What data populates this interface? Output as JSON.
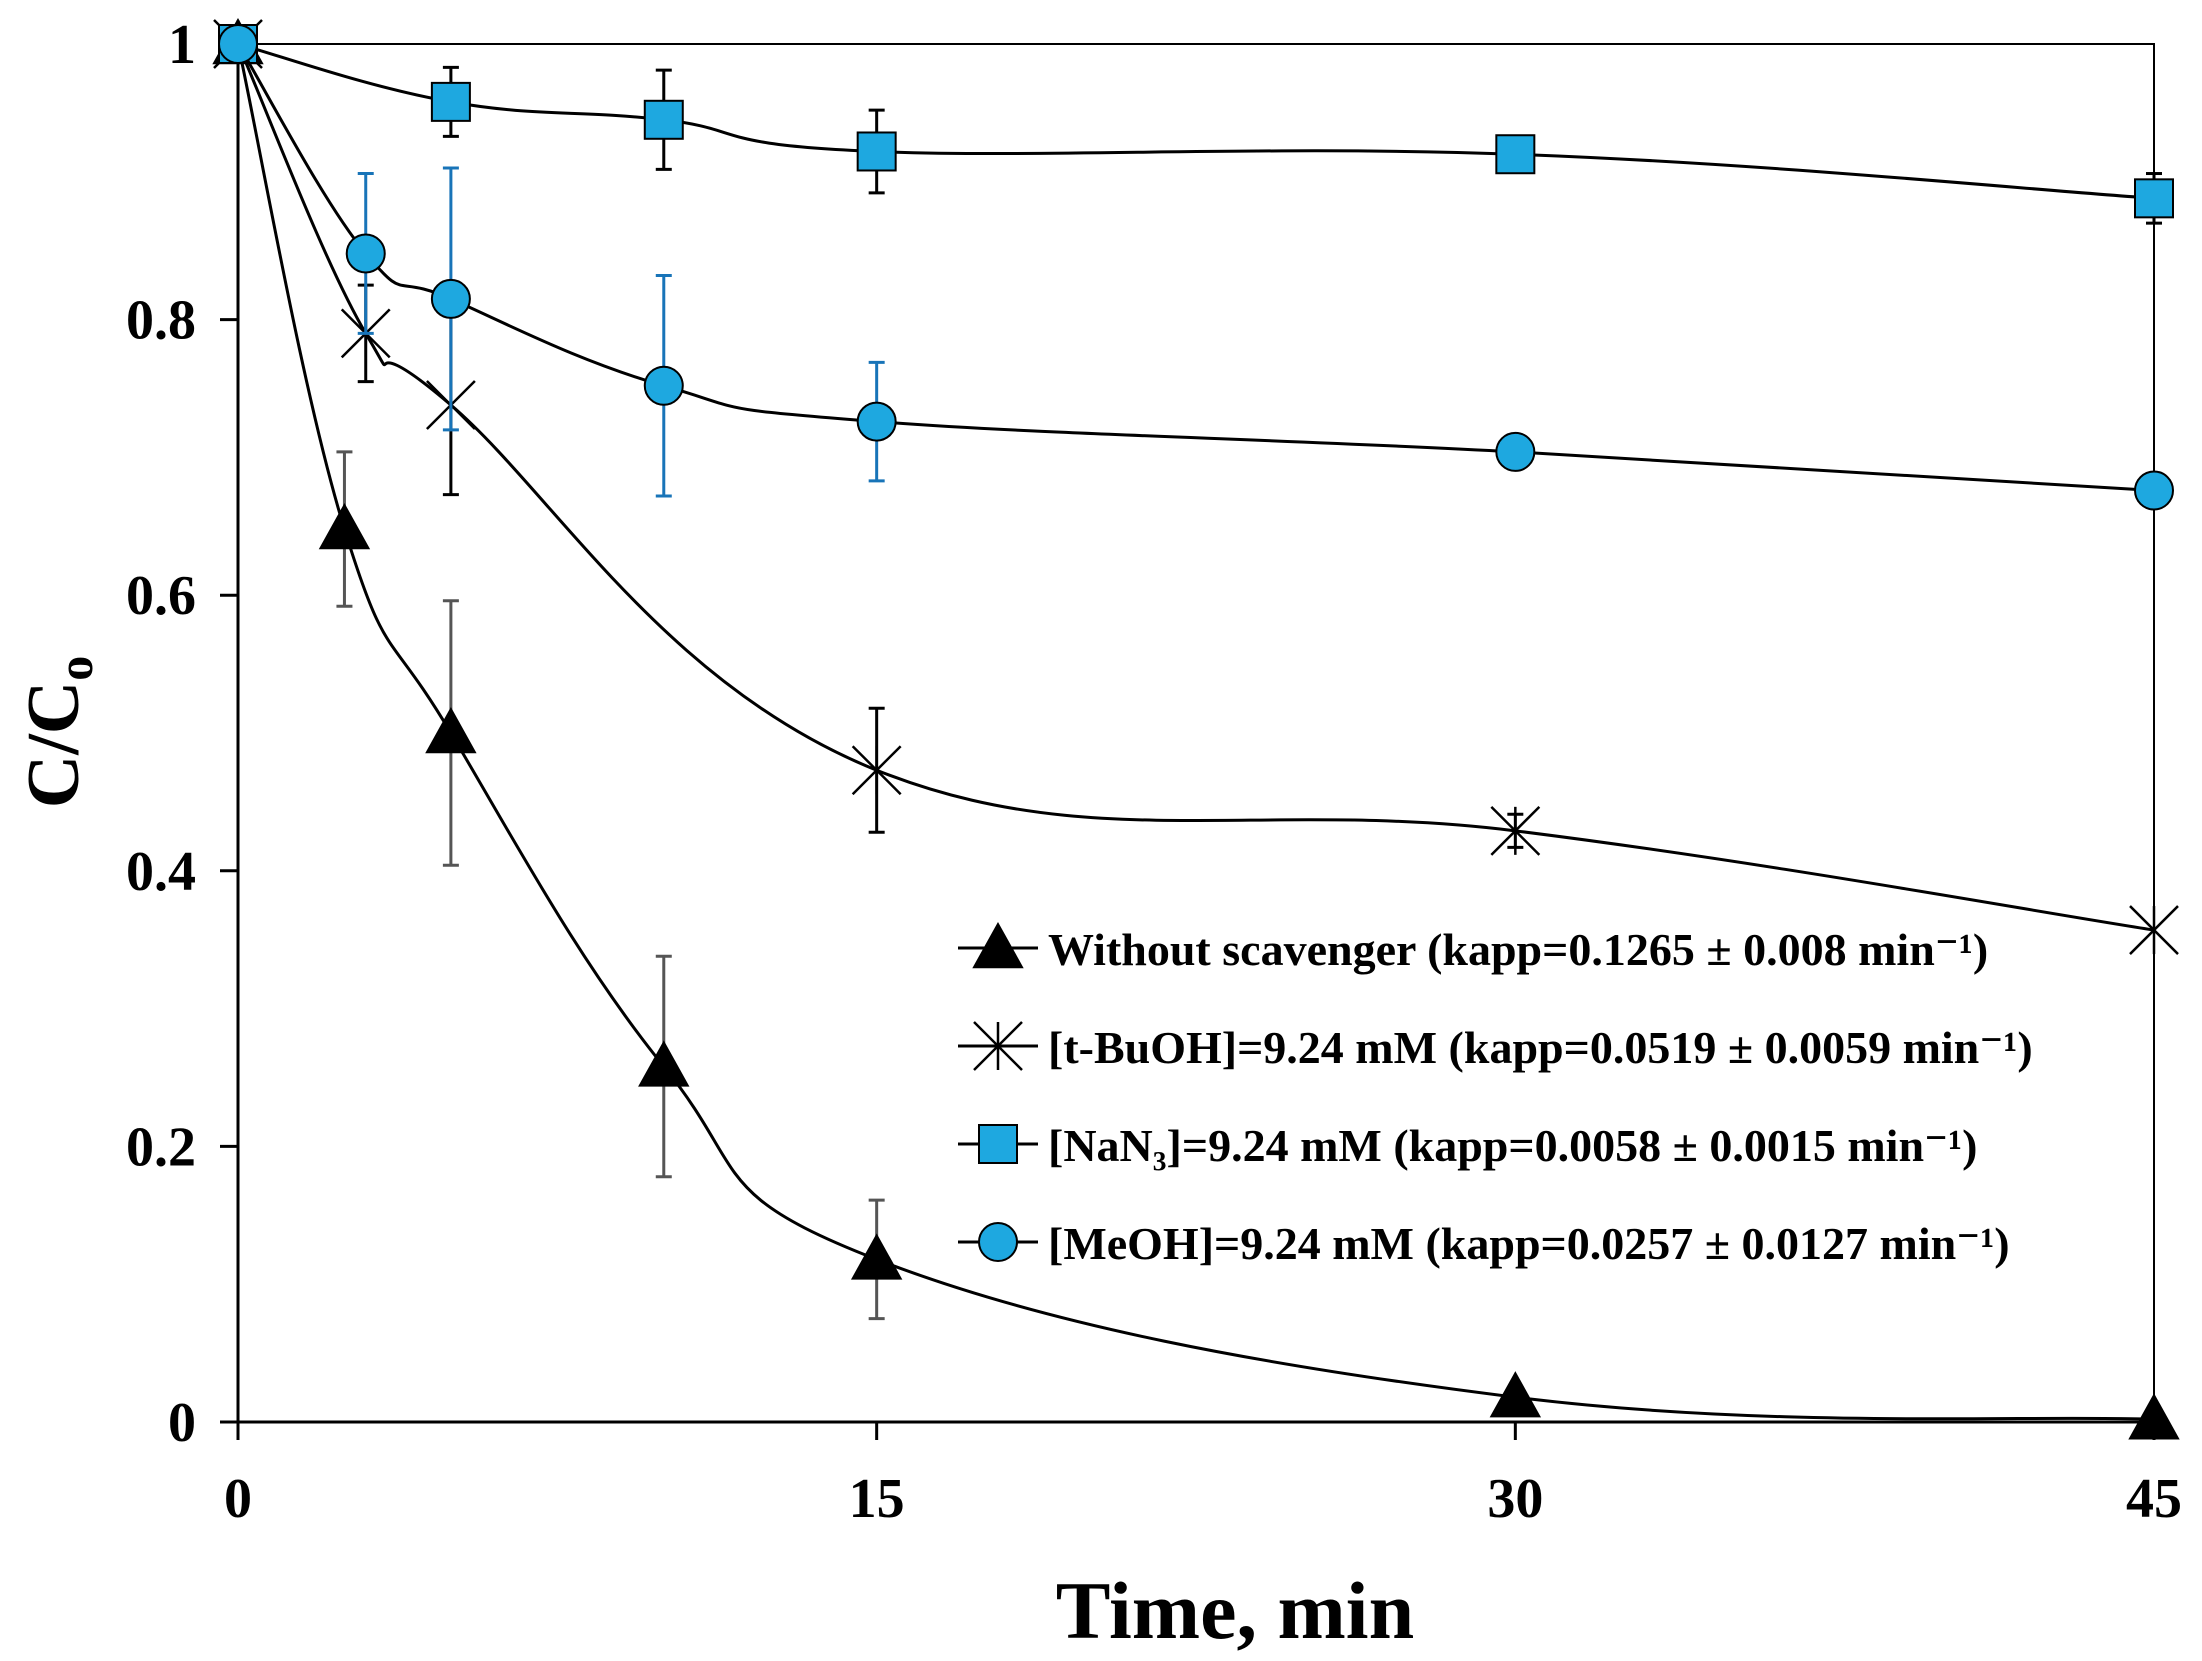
{
  "chart_data": {
    "type": "line",
    "title": "",
    "xlabel": "Time, min",
    "ylabel_main": "C/C",
    "ylabel_sub": "o",
    "xlim": [
      0,
      45
    ],
    "ylim": [
      0,
      1
    ],
    "xticks": [
      0,
      15,
      30,
      45
    ],
    "yticks": [
      0,
      0.2,
      0.4,
      0.6,
      0.8,
      1
    ],
    "ytick_labels": [
      "0",
      "0.2",
      "0.4",
      "0.6",
      "0.8",
      "1"
    ],
    "grid": false,
    "legend_position": "bottom-right",
    "series": [
      {
        "name": "Without scavenger (kapp=0.1265 ± 0.008 min⁻¹)",
        "marker": "triangle",
        "marker_color": "#000000",
        "errorbar_color": "#555555",
        "x": [
          0,
          2.5,
          5,
          10,
          15,
          30,
          45
        ],
        "y": [
          1.0,
          0.648,
          0.5,
          0.258,
          0.118,
          0.018,
          0.002
        ],
        "err": [
          0,
          0.056,
          0.096,
          0.08,
          0.043,
          0,
          0
        ]
      },
      {
        "name": "[t-BuOH]=9.24 mM (kapp=0.0519 ± 0.0059 min⁻¹)",
        "marker": "star",
        "marker_color": "#000000",
        "errorbar_color": "#000000",
        "x": [
          0,
          3,
          5,
          15,
          30,
          45
        ],
        "y": [
          1.0,
          0.79,
          0.738,
          0.473,
          0.429,
          0.357
        ],
        "err": [
          0,
          0.035,
          0.065,
          0.045,
          0.012,
          0
        ]
      },
      {
        "name": "[NaN₃]=9.24 mM (kapp=0.0058 ± 0.0015 min⁻¹)",
        "marker": "square",
        "marker_color": "#1EA8E0",
        "errorbar_color": "#000000",
        "x": [
          0,
          5,
          10,
          15,
          30,
          45
        ],
        "y": [
          1.0,
          0.958,
          0.945,
          0.922,
          0.92,
          0.888
        ],
        "err": [
          0,
          0.025,
          0.036,
          0.03,
          0,
          0.018
        ]
      },
      {
        "name": "[MeOH]=9.24 mM (kapp=0.0257 ± 0.0127 min⁻¹)",
        "marker": "circle",
        "marker_color": "#1EA8E0",
        "errorbar_color": "#1874B8",
        "x": [
          0,
          3,
          5,
          10,
          15,
          30,
          45
        ],
        "y": [
          1.0,
          0.848,
          0.815,
          0.752,
          0.726,
          0.704,
          0.676
        ],
        "err": [
          0,
          0.058,
          0.095,
          0.08,
          0.043,
          0,
          0
        ]
      }
    ]
  }
}
